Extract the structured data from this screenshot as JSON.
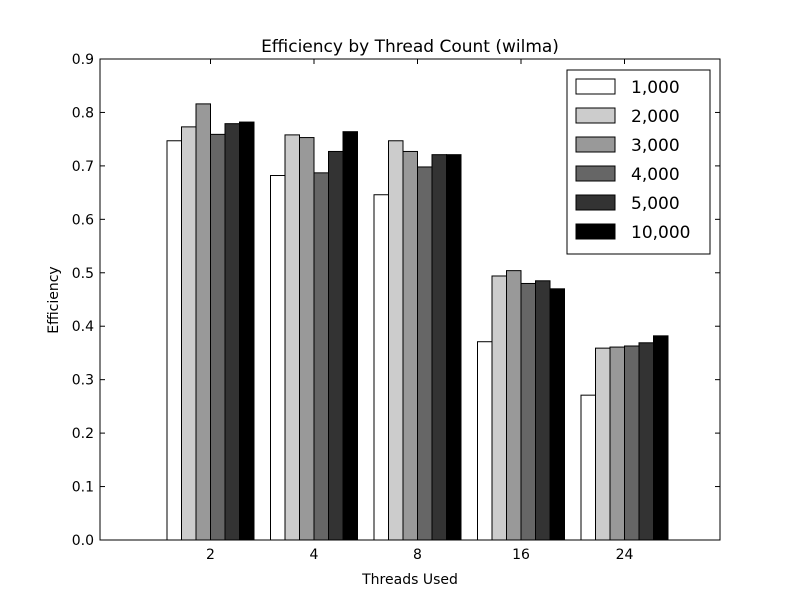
{
  "chart_data": {
    "type": "bar",
    "title": "Efficiency by Thread Count (wilma)",
    "xlabel": "Threads Used",
    "ylabel": "Efficiency",
    "categories": [
      "2",
      "4",
      "8",
      "16",
      "24"
    ],
    "ylim": [
      0,
      0.9
    ],
    "yticks": [
      "0.0",
      "0.1",
      "0.2",
      "0.3",
      "0.4",
      "0.5",
      "0.6",
      "0.7",
      "0.8",
      "0.9"
    ],
    "legend_position": "top-right",
    "grid": false,
    "series": [
      {
        "name": "1,000",
        "color": "#ffffff",
        "values": [
          0.747,
          0.682,
          0.646,
          0.371,
          0.271
        ]
      },
      {
        "name": "2,000",
        "color": "#cccccc",
        "values": [
          0.773,
          0.758,
          0.747,
          0.494,
          0.359
        ]
      },
      {
        "name": "3,000",
        "color": "#999999",
        "values": [
          0.816,
          0.753,
          0.727,
          0.504,
          0.361
        ]
      },
      {
        "name": "4,000",
        "color": "#666666",
        "values": [
          0.759,
          0.687,
          0.698,
          0.48,
          0.363
        ]
      },
      {
        "name": "5,000",
        "color": "#333333",
        "values": [
          0.779,
          0.727,
          0.721,
          0.485,
          0.369
        ]
      },
      {
        "name": "10,000",
        "color": "#000000",
        "values": [
          0.782,
          0.764,
          0.721,
          0.47,
          0.382
        ]
      }
    ]
  }
}
